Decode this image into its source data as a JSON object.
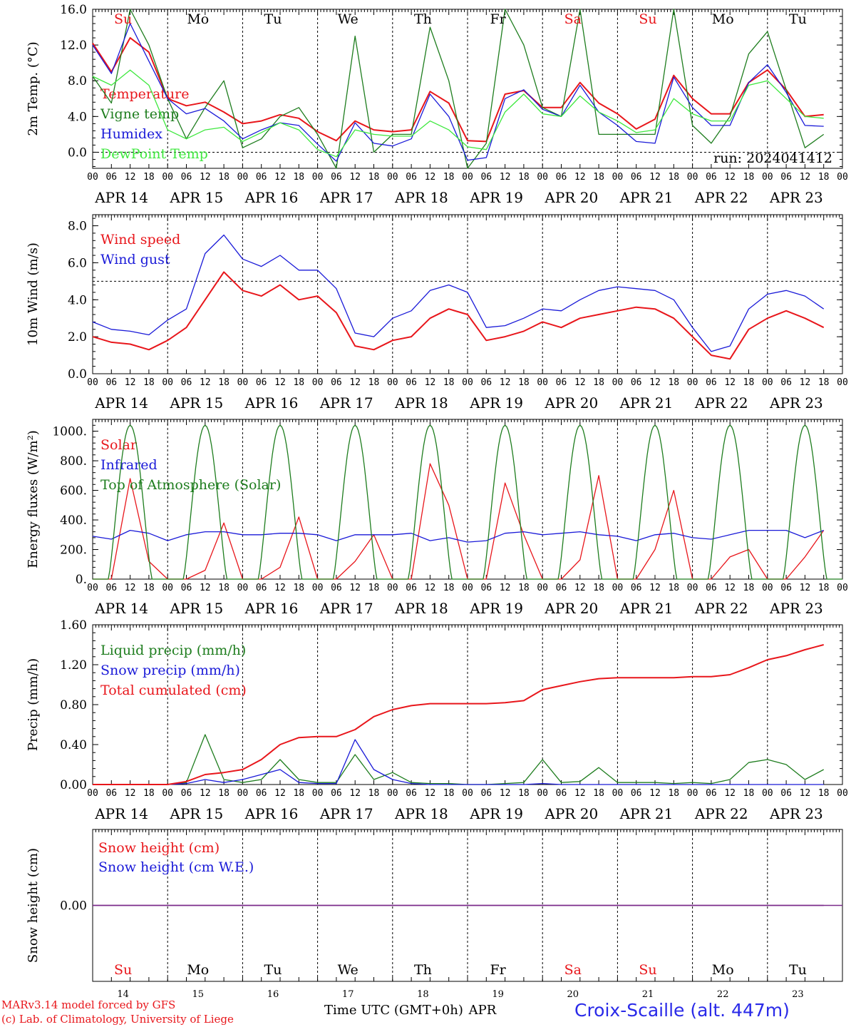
{
  "colors": {
    "red": "#e8161b",
    "green": "#1e7d1e",
    "blue": "#1a1ad8",
    "lightgreen": "#3ee83e",
    "purple": "#7a2a8a",
    "axis": "#000000"
  },
  "days": [
    "Su",
    "Mo",
    "Tu",
    "We",
    "Th",
    "Fr",
    "Sa",
    "Su",
    "Mo",
    "Tu"
  ],
  "day_colors": [
    "red",
    "black",
    "black",
    "black",
    "black",
    "black",
    "red",
    "red",
    "black",
    "black"
  ],
  "day_numbers": [
    "14",
    "15",
    "16",
    "17",
    "18",
    "19",
    "20",
    "21",
    "22",
    "23"
  ],
  "date_labels": [
    "APR 14",
    "APR 15",
    "APR 16",
    "APR 17",
    "APR 18",
    "APR 19",
    "APR 20",
    "APR 21",
    "APR 22",
    "APR 23"
  ],
  "hour_labels": [
    "00",
    "06",
    "12",
    "18"
  ],
  "hour_end_label": "00",
  "run_label": "run: 2024041412",
  "bottom_axis_label": "Time UTC (GMT+0h)",
  "month_label": "APR",
  "credit_model": "MARv3.14 model forced by GFS",
  "credit_lab": "(c) Lab. of Climatology, University of Liege",
  "station": "Croix-Scaille (alt. 447m)",
  "chart_data": [
    {
      "type": "line",
      "ylabel": "2m Temp. (°C)",
      "ylim": [
        -1.8,
        16.0
      ],
      "yticks": [
        "16.0",
        "12.0",
        "8.0",
        "4.0",
        "0.0"
      ],
      "ytick_values": [
        16,
        12,
        8,
        4,
        0
      ],
      "ref_line": 0,
      "x_hours": [
        0,
        6,
        12,
        18,
        24,
        30,
        36,
        42,
        48,
        54,
        60,
        66,
        72,
        78,
        84,
        90,
        96,
        102,
        108,
        114,
        120,
        126,
        132,
        138,
        144,
        150,
        156,
        162,
        168,
        174,
        180,
        186,
        192,
        198,
        204,
        210,
        216,
        222,
        228,
        234
      ],
      "series": [
        {
          "name": "Temperature",
          "color": "red",
          "values": [
            12.2,
            9.0,
            12.8,
            11.2,
            6.0,
            5.2,
            5.6,
            4.5,
            3.2,
            3.5,
            4.2,
            3.8,
            2.3,
            1.3,
            3.5,
            2.5,
            2.3,
            2.5,
            6.8,
            5.5,
            1.3,
            1.2,
            6.5,
            6.9,
            5.0,
            5.0,
            7.8,
            5.5,
            4.3,
            2.6,
            3.7,
            8.6,
            6.0,
            4.3,
            4.3,
            7.8,
            9.2,
            7.0,
            4.0,
            4.2
          ]
        },
        {
          "name": "Vigne temp",
          "color": "green",
          "values": [
            8.5,
            5.5,
            16.0,
            12.0,
            6.0,
            1.5,
            5.0,
            8.0,
            0.5,
            1.5,
            4.0,
            5.0,
            2.0,
            -1.8,
            13.0,
            0.0,
            2.0,
            2.0,
            14.0,
            8.0,
            -1.8,
            1.0,
            16.0,
            12.0,
            5.0,
            4.0,
            16.0,
            2.0,
            2.0,
            2.0,
            2.0,
            16.0,
            3.0,
            1.0,
            4.0,
            11.0,
            13.5,
            7.0,
            0.5,
            2.0
          ]
        },
        {
          "name": "Humidex",
          "color": "blue",
          "values": [
            12.0,
            8.8,
            14.4,
            10.2,
            6.0,
            4.3,
            4.9,
            3.5,
            1.5,
            2.5,
            3.3,
            3.0,
            0.9,
            -1.0,
            3.3,
            1.0,
            0.7,
            1.5,
            6.5,
            4.0,
            -0.9,
            -0.6,
            6.0,
            7.0,
            4.8,
            4.0,
            7.5,
            4.5,
            3.0,
            1.2,
            1.0,
            8.4,
            5.0,
            3.0,
            3.0,
            7.8,
            9.8,
            6.7,
            3.0,
            2.9
          ]
        },
        {
          "name": "DewPoint Temp",
          "color": "lightgreen",
          "values": [
            8.5,
            7.5,
            9.2,
            7.5,
            2.5,
            1.5,
            2.5,
            2.8,
            1.2,
            2.2,
            3.3,
            2.5,
            0.3,
            -0.5,
            2.5,
            2.0,
            1.8,
            1.8,
            3.5,
            2.5,
            0.6,
            0.3,
            4.5,
            6.5,
            4.3,
            4.0,
            6.3,
            4.5,
            3.5,
            2.2,
            2.5,
            6.0,
            4.3,
            3.5,
            3.5,
            7.5,
            8.0,
            6.0,
            4.0,
            3.8
          ]
        }
      ]
    },
    {
      "type": "line",
      "ylabel": "10m Wind (m/s)",
      "ylim": [
        0,
        8.6
      ],
      "yticks": [
        "8.0",
        "6.0",
        "4.0",
        "2.0",
        "0.0"
      ],
      "ytick_values": [
        8,
        6,
        4,
        2,
        0
      ],
      "ref_line": 5,
      "x_hours": [
        0,
        6,
        12,
        18,
        24,
        30,
        36,
        42,
        48,
        54,
        60,
        66,
        72,
        78,
        84,
        90,
        96,
        102,
        108,
        114,
        120,
        126,
        132,
        138,
        144,
        150,
        156,
        162,
        168,
        174,
        180,
        186,
        192,
        198,
        204,
        210,
        216,
        222,
        228,
        234
      ],
      "series": [
        {
          "name": "Wind speed",
          "color": "red",
          "values": [
            2.0,
            1.7,
            1.6,
            1.3,
            1.8,
            2.5,
            4.0,
            5.5,
            4.5,
            4.2,
            4.8,
            4.0,
            4.2,
            3.3,
            1.5,
            1.3,
            1.8,
            2.0,
            3.0,
            3.5,
            3.2,
            1.8,
            2.0,
            2.3,
            2.8,
            2.5,
            3.0,
            3.2,
            3.4,
            3.6,
            3.5,
            3.0,
            2.0,
            1.0,
            0.8,
            2.4,
            3.0,
            3.4,
            3.0,
            2.5
          ]
        },
        {
          "name": "Wind gust",
          "color": "blue",
          "values": [
            2.8,
            2.4,
            2.3,
            2.1,
            2.9,
            3.5,
            6.5,
            7.5,
            6.2,
            5.8,
            6.4,
            5.6,
            5.6,
            4.6,
            2.2,
            2.0,
            3.0,
            3.4,
            4.5,
            4.8,
            4.4,
            2.5,
            2.6,
            3.0,
            3.5,
            3.4,
            4.0,
            4.5,
            4.7,
            4.6,
            4.5,
            4.0,
            2.5,
            1.2,
            1.5,
            3.5,
            4.3,
            4.5,
            4.2,
            3.5
          ]
        }
      ]
    },
    {
      "type": "line",
      "ylabel": "Energy fluxes (W/m²)",
      "ylim": [
        0,
        1080
      ],
      "yticks": [
        "1000.",
        "800.",
        "600.",
        "400.",
        "200.",
        "0."
      ],
      "ytick_values": [
        1000,
        800,
        600,
        400,
        200,
        0
      ],
      "x_hours": [
        0,
        6,
        12,
        18,
        24,
        30,
        36,
        42,
        48,
        54,
        60,
        66,
        72,
        78,
        84,
        90,
        96,
        102,
        108,
        114,
        120,
        126,
        132,
        138,
        144,
        150,
        156,
        162,
        168,
        174,
        180,
        186,
        192,
        198,
        204,
        210,
        216,
        222,
        228,
        234
      ],
      "series": [
        {
          "name": "Solar",
          "color": "red",
          "values": [
            0,
            0,
            680,
            120,
            0,
            0,
            60,
            380,
            0,
            0,
            80,
            420,
            0,
            0,
            120,
            300,
            0,
            0,
            780,
            500,
            0,
            0,
            650,
            300,
            0,
            0,
            130,
            700,
            0,
            0,
            200,
            600,
            0,
            0,
            150,
            200,
            0,
            0,
            150,
            330
          ]
        },
        {
          "name": "Infrared",
          "color": "blue",
          "values": [
            290,
            270,
            330,
            310,
            260,
            300,
            320,
            320,
            300,
            300,
            310,
            310,
            300,
            260,
            300,
            300,
            300,
            310,
            260,
            280,
            250,
            260,
            310,
            320,
            300,
            310,
            320,
            300,
            290,
            260,
            300,
            310,
            280,
            270,
            300,
            330,
            330,
            330,
            280,
            330
          ]
        },
        {
          "name": "Top of Atmosphere (Solar)",
          "color": "green",
          "peak": 1040
        }
      ]
    },
    {
      "type": "line",
      "ylabel": "Precip (mm/h)",
      "ylim": [
        0,
        1.6
      ],
      "yticks": [
        "1.60",
        "1.20",
        "0.80",
        "0.40",
        "0.00"
      ],
      "ytick_values": [
        1.6,
        1.2,
        0.8,
        0.4,
        0
      ],
      "x_hours": [
        0,
        6,
        12,
        18,
        24,
        30,
        36,
        42,
        48,
        54,
        60,
        66,
        72,
        78,
        84,
        90,
        96,
        102,
        108,
        114,
        120,
        126,
        132,
        138,
        144,
        150,
        156,
        162,
        168,
        174,
        180,
        186,
        192,
        198,
        204,
        210,
        216,
        222,
        228,
        234
      ],
      "series": [
        {
          "name": "Liquid precip (mm/h)",
          "color": "green",
          "values": [
            0,
            0,
            0,
            0,
            0,
            0.02,
            0.5,
            0.05,
            0.02,
            0.05,
            0.25,
            0.05,
            0.02,
            0.02,
            0.3,
            0.05,
            0.12,
            0.02,
            0.01,
            0.01,
            0,
            0,
            0.01,
            0.02,
            0.25,
            0.02,
            0.03,
            0.17,
            0.02,
            0.02,
            0.02,
            0.01,
            0.02,
            0.01,
            0.05,
            0.22,
            0.25,
            0.2,
            0.05,
            0.15
          ]
        },
        {
          "name": "Snow precip (mm/h)",
          "color": "blue",
          "values": [
            0,
            0,
            0,
            0,
            0,
            0.01,
            0.05,
            0.02,
            0.05,
            0.1,
            0.15,
            0.02,
            0.01,
            0.01,
            0.45,
            0.15,
            0.05,
            0.01,
            0,
            0,
            0,
            0,
            0,
            0,
            0.01,
            0,
            0,
            0,
            0,
            0,
            0,
            0,
            0,
            0,
            0,
            0,
            0,
            0,
            0,
            0
          ]
        },
        {
          "name": "Total cumulated (cm)",
          "color": "red",
          "values": [
            0,
            0,
            0,
            0,
            0,
            0.03,
            0.1,
            0.12,
            0.15,
            0.25,
            0.4,
            0.47,
            0.48,
            0.48,
            0.55,
            0.68,
            0.75,
            0.79,
            0.81,
            0.81,
            0.81,
            0.81,
            0.82,
            0.84,
            0.95,
            0.99,
            1.03,
            1.06,
            1.07,
            1.07,
            1.07,
            1.07,
            1.08,
            1.08,
            1.1,
            1.17,
            1.25,
            1.29,
            1.35,
            1.4
          ]
        }
      ]
    },
    {
      "type": "line",
      "ylabel": "Snow height (cm)",
      "ylim": [
        -1,
        1
      ],
      "yticks": [
        "0.00"
      ],
      "ytick_values": [
        0
      ],
      "x_hours": [
        0,
        234
      ],
      "series": [
        {
          "name": "Snow height (cm)",
          "color": "red",
          "values": [
            0,
            0
          ]
        },
        {
          "name": "Snow height (cm W.E.)",
          "color": "blue",
          "values": [
            0,
            0
          ]
        }
      ]
    }
  ]
}
